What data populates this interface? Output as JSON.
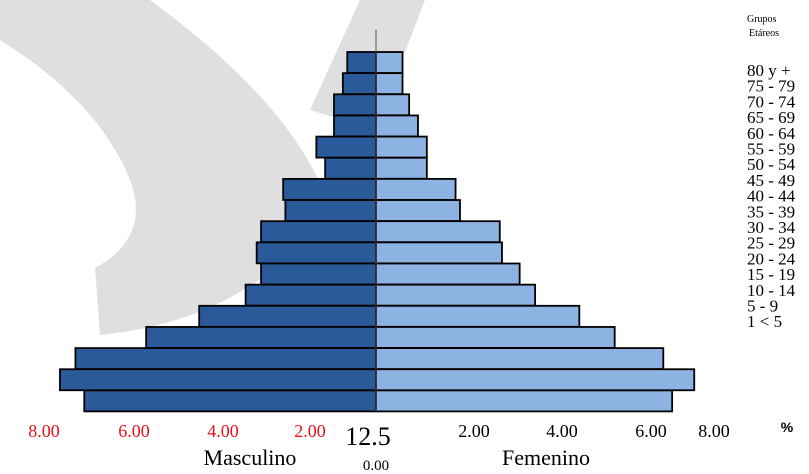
{
  "chart_data": {
    "type": "bar",
    "orientation": "horizontal-population-pyramid",
    "legend_title_line1": "Grupos",
    "legend_title_line2": "Etáreos",
    "categories": [
      "80 y +",
      "75 - 79",
      "70 - 74",
      "65 - 69",
      "60 - 64",
      "55 - 59",
      "50 - 54",
      "45 - 49",
      "40 - 44",
      "35 - 39",
      "30 - 34",
      "25 - 29",
      "20 - 24",
      "15 - 19",
      "10 - 14",
      "5 - 9",
      "1 < 5"
    ],
    "series": [
      {
        "name": "Masculino",
        "color": "#2b5a9a",
        "values": [
          0.65,
          0.75,
          0.95,
          0.95,
          1.35,
          1.15,
          2.1,
          2.05,
          2.6,
          2.7,
          2.6,
          2.95,
          4.0,
          5.2,
          6.8,
          7.15,
          6.6
        ]
      },
      {
        "name": "Femenino",
        "color": "#8db3e2",
        "values": [
          0.6,
          0.6,
          0.75,
          0.95,
          1.15,
          1.15,
          1.8,
          1.9,
          2.8,
          2.85,
          3.25,
          3.6,
          4.6,
          5.4,
          6.5,
          7.2,
          6.7
        ]
      }
    ],
    "x_ticks_left": [
      "8.00",
      "6.00",
      "4.00",
      "2.00"
    ],
    "x_ticks_right": [
      "2.00",
      "4.00",
      "6.00",
      "8.00"
    ],
    "center_value": "12.5",
    "center_zero": "0.00",
    "xlabel_left": "Masculino",
    "xlabel_right": "Femenino",
    "unit_label": "%",
    "xlim": [
      -8,
      8
    ],
    "colors": {
      "male": "#2b5a9a",
      "female": "#8db3e2",
      "left_ticks": "#e8101a",
      "outline": "#000000"
    }
  }
}
